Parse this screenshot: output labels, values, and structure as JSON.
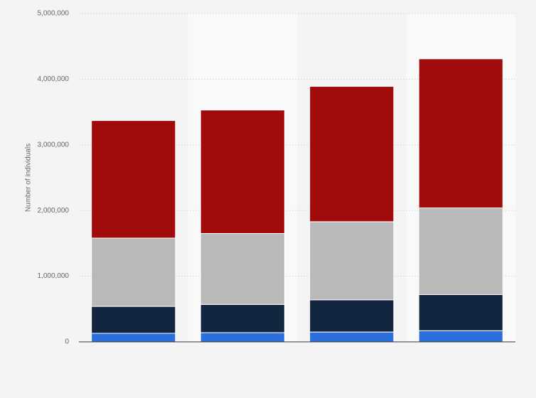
{
  "chart_data": {
    "type": "stacked_bar",
    "y_label": "Number of individuals",
    "categories": [
      null,
      null,
      null,
      null
    ],
    "series": [
      {
        "color": "#2b6fdc",
        "values": [
          130000,
          140000,
          150000,
          170000
        ]
      },
      {
        "color": "#12263f",
        "values": [
          410000,
          430000,
          490000,
          550000
        ]
      },
      {
        "color": "#b9b9b9",
        "values": [
          1040000,
          1080000,
          1190000,
          1320000
        ]
      },
      {
        "color": "#a10b0b",
        "values": [
          1790000,
          1880000,
          2060000,
          2270000
        ]
      }
    ],
    "ylim": [
      0,
      5000000
    ],
    "yticks": [
      0,
      {
        "value": 1000000,
        "label": "1,000,000"
      },
      {
        "value": 2000000,
        "label": "2,000,000"
      },
      {
        "value": 3000000,
        "label": "3,000,000"
      },
      {
        "value": 4000000,
        "label": "4,000,000"
      },
      {
        "value": 5000000,
        "label": "5,000,000"
      }
    ],
    "grid": true
  }
}
